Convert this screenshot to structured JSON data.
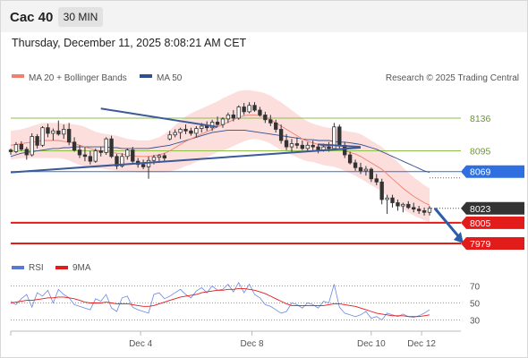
{
  "header": {
    "symbol": "Cac 40",
    "timeframe": "30 MIN"
  },
  "datetime": "Thursday, December 11, 2025 8:08:21 AM CET",
  "legend": {
    "ma20": "MA 20 + Bollinger Bands",
    "ma50": "MA 50",
    "credit": "Research © 2025 Trading Central"
  },
  "rsi_legend": {
    "rsi": "RSI",
    "ma": "9MA"
  },
  "colors": {
    "ma20": "#f08070",
    "ma50": "#2f4f8f",
    "bands": "#fbd3d0",
    "levels_green": "#8fbf4a",
    "pivot": "#2f6fe0",
    "support_red": "#e21b1b",
    "trend": "#3a5a99",
    "candle": "#333333"
  },
  "chart_data": {
    "type": "candlestick",
    "x_ticks": [
      "Dec 4",
      "Dec 8",
      "Dec 10",
      "Dec 12"
    ],
    "price_levels": [
      {
        "value": 8136,
        "label": "8136",
        "kind": "resistance"
      },
      {
        "value": 8095,
        "label": "8095",
        "kind": "resistance"
      },
      {
        "value": 8069,
        "label": "8069",
        "kind": "pivot"
      },
      {
        "value": 8023,
        "label": "8023",
        "kind": "last"
      },
      {
        "value": 8005,
        "label": "8005",
        "kind": "support"
      },
      {
        "value": 7979,
        "label": "7979",
        "kind": "support"
      }
    ],
    "price_range": [
      7979,
      8168
    ],
    "candles": [
      [
        8096,
        8098,
        8090,
        8094
      ],
      [
        8094,
        8106,
        8092,
        8103
      ],
      [
        8103,
        8107,
        8095,
        8097
      ],
      [
        8097,
        8100,
        8084,
        8090
      ],
      [
        8090,
        8117,
        8088,
        8113
      ],
      [
        8113,
        8116,
        8098,
        8102
      ],
      [
        8102,
        8126,
        8100,
        8124
      ],
      [
        8124,
        8129,
        8112,
        8117
      ],
      [
        8117,
        8123,
        8108,
        8120
      ],
      [
        8120,
        8133,
        8114,
        8116
      ],
      [
        8116,
        8128,
        8110,
        8122
      ],
      [
        8122,
        8130,
        8102,
        8106
      ],
      [
        8106,
        8112,
        8094,
        8096
      ],
      [
        8096,
        8102,
        8086,
        8090
      ],
      [
        8090,
        8100,
        8082,
        8088
      ],
      [
        8088,
        8095,
        8078,
        8082
      ],
      [
        8082,
        8098,
        8080,
        8095
      ],
      [
        8095,
        8100,
        8088,
        8093
      ],
      [
        8093,
        8112,
        8090,
        8110
      ],
      [
        8110,
        8114,
        8086,
        8088
      ],
      [
        8088,
        8091,
        8072,
        8076
      ],
      [
        8076,
        8092,
        8074,
        8088
      ],
      [
        8088,
        8098,
        8084,
        8096
      ],
      [
        8096,
        8100,
        8080,
        8082
      ],
      [
        8082,
        8086,
        8074,
        8078
      ],
      [
        8078,
        8084,
        8072,
        8075
      ],
      [
        8075,
        8088,
        8060,
        8083
      ],
      [
        8083,
        8090,
        8078,
        8087
      ],
      [
        8087,
        8091,
        8080,
        8089
      ],
      [
        8089,
        8092,
        8082,
        8086
      ],
      [
        8110,
        8120,
        8108,
        8115
      ],
      [
        8115,
        8122,
        8112,
        8118
      ],
      [
        8118,
        8124,
        8110,
        8122
      ],
      [
        8122,
        8128,
        8116,
        8120
      ],
      [
        8120,
        8124,
        8114,
        8117
      ],
      [
        8117,
        8126,
        8112,
        8123
      ],
      [
        8123,
        8130,
        8118,
        8126
      ],
      [
        8126,
        8132,
        8120,
        8124
      ],
      [
        8124,
        8134,
        8120,
        8131
      ],
      [
        8131,
        8138,
        8126,
        8128
      ],
      [
        8128,
        8137,
        8124,
        8135
      ],
      [
        8135,
        8143,
        8130,
        8140
      ],
      [
        8140,
        8146,
        8132,
        8136
      ],
      [
        8136,
        8152,
        8134,
        8150
      ],
      [
        8150,
        8155,
        8140,
        8144
      ],
      [
        8144,
        8156,
        8142,
        8152
      ],
      [
        8152,
        8156,
        8144,
        8146
      ],
      [
        8146,
        8150,
        8138,
        8140
      ],
      [
        8140,
        8144,
        8130,
        8134
      ],
      [
        8134,
        8140,
        8126,
        8130
      ],
      [
        8130,
        8134,
        8118,
        8122
      ],
      [
        8122,
        8128,
        8104,
        8108
      ],
      [
        8108,
        8116,
        8096,
        8100
      ],
      [
        8100,
        8110,
        8094,
        8104
      ],
      [
        8104,
        8112,
        8098,
        8102
      ],
      [
        8102,
        8108,
        8096,
        8098
      ],
      [
        8098,
        8106,
        8094,
        8102
      ],
      [
        8102,
        8108,
        8096,
        8100
      ],
      [
        8100,
        8104,
        8092,
        8096
      ],
      [
        8096,
        8104,
        8094,
        8100
      ],
      [
        8100,
        8106,
        8094,
        8098
      ],
      [
        8098,
        8130,
        8096,
        8125
      ],
      [
        8125,
        8128,
        8098,
        8102
      ],
      [
        8102,
        8106,
        8086,
        8090
      ],
      [
        8090,
        8094,
        8078,
        8080
      ],
      [
        8080,
        8084,
        8070,
        8074
      ],
      [
        8074,
        8080,
        8066,
        8070
      ],
      [
        8070,
        8076,
        8064,
        8072
      ],
      [
        8072,
        8074,
        8056,
        8060
      ],
      [
        8060,
        8066,
        8052,
        8056
      ],
      [
        8056,
        8060,
        8028,
        8034
      ],
      [
        8034,
        8040,
        8016,
        8036
      ],
      [
        8036,
        8040,
        8024,
        8030
      ],
      [
        8030,
        8034,
        8020,
        8026
      ],
      [
        8026,
        8030,
        8018,
        8028
      ],
      [
        8028,
        8032,
        8022,
        8024
      ],
      [
        8024,
        8030,
        8018,
        8022
      ],
      [
        8022,
        8026,
        8016,
        8020
      ],
      [
        8020,
        8024,
        8014,
        8018
      ],
      [
        8018,
        8026,
        8014,
        8023
      ]
    ],
    "ma20": [
      8102,
      8103,
      8104,
      8105,
      8106,
      8107,
      8108,
      8108,
      8108,
      8108,
      8107,
      8106,
      8104,
      8102,
      8100,
      8098,
      8096,
      8095,
      8094,
      8093,
      8092,
      8091,
      8090,
      8089,
      8088,
      8088,
      8088,
      8089,
      8090,
      8092,
      8095,
      8099,
      8103,
      8107,
      8110,
      8113,
      8116,
      8119,
      8122,
      8125,
      8128,
      8131,
      8134,
      8137,
      8139,
      8140,
      8140,
      8139,
      8137,
      8134,
      8130,
      8126,
      8122,
      8118,
      8114,
      8110,
      8107,
      8105,
      8103,
      8101,
      8100,
      8099,
      8097,
      8095,
      8093,
      8091,
      8088,
      8084,
      8080,
      8076,
      8072,
      8066,
      8060,
      8054,
      8048,
      8043,
      8038,
      8034,
      8030,
      8027
    ],
    "ma50": [
      8088,
      8090,
      8092,
      8093,
      8094,
      8095,
      8096,
      8097,
      8098,
      8098,
      8099,
      8099,
      8100,
      8100,
      8100,
      8100,
      8100,
      8100,
      8100,
      8099,
      8099,
      8098,
      8098,
      8098,
      8098,
      8098,
      8098,
      8099,
      8100,
      8101,
      8102,
      8104,
      8106,
      8108,
      8110,
      8112,
      8114,
      8116,
      8118,
      8119,
      8120,
      8121,
      8121,
      8121,
      8121,
      8120,
      8119,
      8118,
      8117,
      8116,
      8115,
      8114,
      8113,
      8112,
      8111,
      8110,
      8109,
      8109,
      8108,
      8108,
      8108,
      8107,
      8106,
      8106,
      8105,
      8104,
      8103,
      8101,
      8099,
      8097,
      8094,
      8091,
      8088,
      8085,
      8082,
      8079,
      8076,
      8073,
      8070,
      8068
    ],
    "band_width": [
      18,
      18,
      18,
      19,
      20,
      21,
      22,
      22,
      22,
      22,
      22,
      23,
      24,
      25,
      25,
      24,
      23,
      22,
      22,
      22,
      22,
      21,
      20,
      20,
      20,
      20,
      20,
      21,
      22,
      24,
      26,
      28,
      30,
      31,
      32,
      32,
      32,
      32,
      32,
      32,
      33,
      33,
      33,
      33,
      32,
      31,
      30,
      30,
      30,
      30,
      30,
      30,
      29,
      28,
      27,
      26,
      25,
      24,
      24,
      24,
      24,
      24,
      24,
      25,
      26,
      27,
      28,
      28,
      28,
      28,
      28,
      28,
      27,
      27,
      26,
      25,
      24,
      23,
      22,
      21
    ],
    "trendlines": [
      {
        "from": [
          17,
          8148
        ],
        "to": [
          39,
          8125
        ]
      },
      {
        "from": [
          58,
          8103
        ],
        "to": [
          66,
          8100
        ]
      },
      {
        "from": [
          0,
          8068
        ],
        "to": [
          66,
          8099
        ]
      }
    ],
    "projection": {
      "from": [
        80,
        8023
      ],
      "to": [
        84,
        7979
      ]
    },
    "rsi": {
      "levels": [
        70,
        50,
        30
      ],
      "range": [
        20,
        80
      ],
      "rsi_values": [
        52,
        48,
        55,
        60,
        45,
        62,
        58,
        65,
        50,
        66,
        60,
        56,
        48,
        46,
        44,
        42,
        55,
        52,
        60,
        44,
        40,
        56,
        58,
        45,
        42,
        40,
        38,
        60,
        62,
        55,
        58,
        62,
        66,
        60,
        56,
        64,
        68,
        62,
        70,
        65,
        66,
        72,
        63,
        74,
        62,
        72,
        60,
        56,
        48,
        46,
        42,
        38,
        40,
        50,
        48,
        44,
        50,
        48,
        44,
        52,
        50,
        72,
        45,
        38,
        36,
        34,
        36,
        40,
        32,
        34,
        30,
        38,
        36,
        34,
        37,
        34,
        33,
        35,
        38,
        42
      ],
      "ma_values": [
        50,
        51,
        52,
        53,
        53,
        54,
        55,
        56,
        56,
        57,
        57,
        56,
        55,
        53,
        51,
        50,
        50,
        50,
        51,
        50,
        49,
        49,
        49,
        48,
        47,
        46,
        46,
        47,
        49,
        51,
        53,
        55,
        57,
        58,
        59,
        60,
        62,
        63,
        64,
        65,
        65,
        66,
        66,
        67,
        67,
        66,
        65,
        63,
        61,
        58,
        55,
        52,
        49,
        47,
        47,
        47,
        47,
        47,
        47,
        47,
        48,
        49,
        49,
        48,
        47,
        46,
        44,
        42,
        40,
        38,
        37,
        36,
        35,
        35,
        35,
        34,
        34,
        34,
        35,
        36
      ]
    }
  }
}
